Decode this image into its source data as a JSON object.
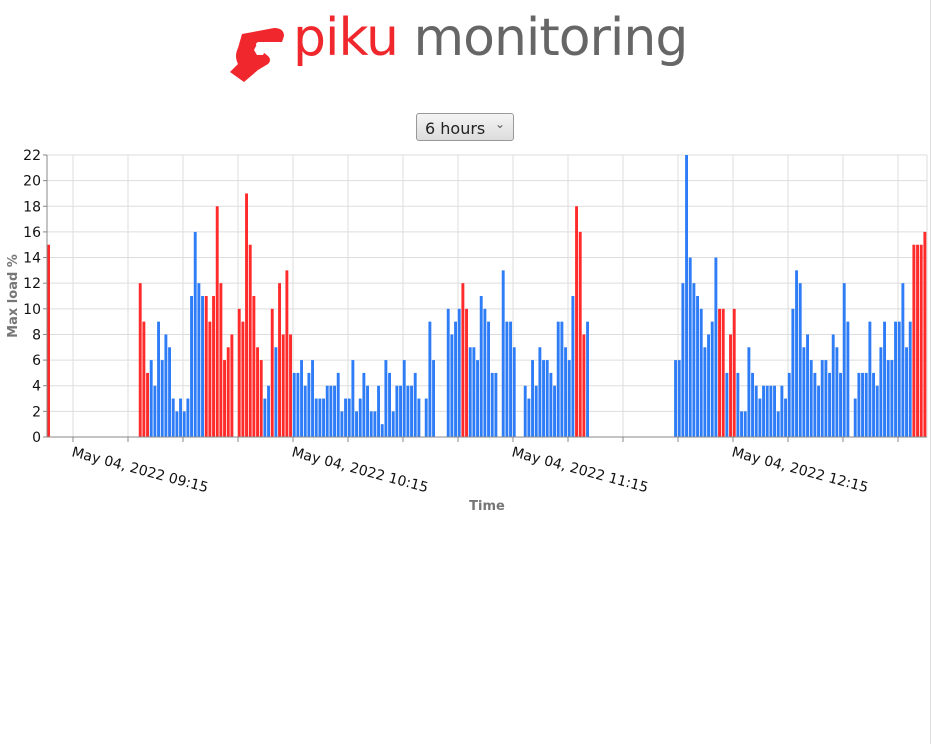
{
  "header": {
    "brand_primary": "piku",
    "brand_secondary": "monitoring",
    "logo_icon": "hand-icon",
    "brand_color": "#f0282d"
  },
  "controls": {
    "range_selected": "6 hours"
  },
  "chart_data": {
    "type": "bar",
    "xlabel": "Time",
    "ylabel": "Max load %",
    "ylim": [
      0,
      22
    ],
    "yticks": [
      "0",
      "2",
      "4",
      "6",
      "8",
      "10",
      "12",
      "14",
      "16",
      "18",
      "20",
      "22"
    ],
    "x_start": "May 04, 2022 09:08",
    "x_step_minutes": 1,
    "xtick_labels": [
      "May 04, 2022 09:15",
      "May 04, 2022 10:15",
      "May 04, 2022 11:15",
      "May 04, 2022 12:15"
    ],
    "grid": true,
    "colors": {
      "r": "#ff2a2a",
      "b": "#2f7df6"
    },
    "bars": [
      [
        15,
        "r"
      ],
      null,
      null,
      null,
      null,
      null,
      null,
      null,
      null,
      null,
      null,
      null,
      null,
      null,
      null,
      null,
      null,
      null,
      null,
      null,
      null,
      null,
      null,
      null,
      null,
      [
        12,
        "r"
      ],
      [
        9,
        "r"
      ],
      [
        5,
        "r"
      ],
      [
        6,
        "b"
      ],
      [
        4,
        "b"
      ],
      [
        9,
        "b"
      ],
      [
        6,
        "b"
      ],
      [
        8,
        "b"
      ],
      [
        7,
        "b"
      ],
      [
        3,
        "b"
      ],
      [
        2,
        "b"
      ],
      [
        3,
        "b"
      ],
      [
        2,
        "b"
      ],
      [
        3,
        "b"
      ],
      [
        11,
        "b"
      ],
      [
        16,
        "b"
      ],
      [
        12,
        "b"
      ],
      [
        11,
        "b"
      ],
      [
        11,
        "r"
      ],
      [
        9,
        "r"
      ],
      [
        11,
        "r"
      ],
      [
        18,
        "r"
      ],
      [
        12,
        "r"
      ],
      [
        6,
        "r"
      ],
      [
        7,
        "r"
      ],
      [
        8,
        "r"
      ],
      null,
      [
        10,
        "r"
      ],
      [
        9,
        "r"
      ],
      [
        19,
        "r"
      ],
      [
        15,
        "r"
      ],
      [
        11,
        "r"
      ],
      [
        7,
        "r"
      ],
      [
        6,
        "r"
      ],
      [
        3,
        "b"
      ],
      [
        4,
        "b"
      ],
      [
        10,
        "r"
      ],
      [
        7,
        "b"
      ],
      [
        12,
        "r"
      ],
      [
        8,
        "r"
      ],
      [
        13,
        "r"
      ],
      [
        8,
        "r"
      ],
      [
        5,
        "b"
      ],
      [
        5,
        "b"
      ],
      [
        6,
        "b"
      ],
      [
        4,
        "b"
      ],
      [
        5,
        "b"
      ],
      [
        6,
        "b"
      ],
      [
        3,
        "b"
      ],
      [
        3,
        "b"
      ],
      [
        3,
        "b"
      ],
      [
        4,
        "b"
      ],
      [
        4,
        "b"
      ],
      [
        4,
        "b"
      ],
      [
        5,
        "b"
      ],
      [
        2,
        "b"
      ],
      [
        3,
        "b"
      ],
      [
        3,
        "b"
      ],
      [
        6,
        "b"
      ],
      [
        2,
        "b"
      ],
      [
        3,
        "b"
      ],
      [
        5,
        "b"
      ],
      [
        4,
        "b"
      ],
      [
        2,
        "b"
      ],
      [
        2,
        "b"
      ],
      [
        4,
        "b"
      ],
      [
        1,
        "b"
      ],
      [
        6,
        "b"
      ],
      [
        5,
        "b"
      ],
      [
        2,
        "b"
      ],
      [
        4,
        "b"
      ],
      [
        4,
        "b"
      ],
      [
        6,
        "b"
      ],
      [
        4,
        "b"
      ],
      [
        4,
        "b"
      ],
      [
        5,
        "b"
      ],
      [
        3,
        "b"
      ],
      null,
      [
        3,
        "b"
      ],
      [
        9,
        "b"
      ],
      [
        6,
        "b"
      ],
      null,
      null,
      null,
      [
        10,
        "b"
      ],
      [
        8,
        "b"
      ],
      [
        9,
        "b"
      ],
      [
        10,
        "b"
      ],
      [
        12,
        "r"
      ],
      [
        10,
        "r"
      ],
      [
        7,
        "b"
      ],
      [
        7,
        "b"
      ],
      [
        6,
        "b"
      ],
      [
        11,
        "b"
      ],
      [
        10,
        "b"
      ],
      [
        9,
        "b"
      ],
      [
        5,
        "b"
      ],
      [
        5,
        "b"
      ],
      null,
      [
        13,
        "b"
      ],
      [
        9,
        "b"
      ],
      [
        9,
        "b"
      ],
      [
        7,
        "b"
      ],
      null,
      null,
      [
        4,
        "b"
      ],
      [
        3,
        "b"
      ],
      [
        6,
        "b"
      ],
      [
        4,
        "b"
      ],
      [
        7,
        "b"
      ],
      [
        6,
        "b"
      ],
      [
        6,
        "b"
      ],
      [
        5,
        "b"
      ],
      [
        4,
        "b"
      ],
      [
        9,
        "b"
      ],
      [
        9,
        "b"
      ],
      [
        7,
        "b"
      ],
      [
        6,
        "b"
      ],
      [
        11,
        "b"
      ],
      [
        18,
        "r"
      ],
      [
        16,
        "r"
      ],
      [
        8,
        "r"
      ],
      [
        9,
        "b"
      ],
      null,
      null,
      null,
      null,
      null,
      null,
      null,
      null,
      null,
      null,
      null,
      null,
      null,
      null,
      null,
      null,
      null,
      null,
      null,
      null,
      null,
      null,
      null,
      [
        6,
        "b"
      ],
      [
        6,
        "b"
      ],
      [
        12,
        "b"
      ],
      [
        22,
        "b"
      ],
      [
        14,
        "b"
      ],
      [
        12,
        "b"
      ],
      [
        11,
        "b"
      ],
      [
        10,
        "b"
      ],
      [
        7,
        "b"
      ],
      [
        8,
        "b"
      ],
      [
        9,
        "b"
      ],
      [
        14,
        "b"
      ],
      [
        10,
        "r"
      ],
      [
        10,
        "r"
      ],
      [
        5,
        "b"
      ],
      [
        8,
        "r"
      ],
      [
        10,
        "r"
      ],
      [
        5,
        "b"
      ],
      [
        2,
        "b"
      ],
      [
        2,
        "b"
      ],
      [
        7,
        "b"
      ],
      [
        5,
        "b"
      ],
      [
        4,
        "b"
      ],
      [
        3,
        "b"
      ],
      [
        4,
        "b"
      ],
      [
        4,
        "b"
      ],
      [
        4,
        "b"
      ],
      [
        4,
        "b"
      ],
      [
        2,
        "b"
      ],
      [
        4,
        "b"
      ],
      [
        3,
        "b"
      ],
      [
        5,
        "b"
      ],
      [
        10,
        "b"
      ],
      [
        13,
        "b"
      ],
      [
        12,
        "b"
      ],
      [
        7,
        "b"
      ],
      [
        8,
        "b"
      ],
      [
        6,
        "b"
      ],
      [
        5,
        "b"
      ],
      [
        4,
        "b"
      ],
      [
        6,
        "b"
      ],
      [
        6,
        "b"
      ],
      [
        5,
        "b"
      ],
      [
        8,
        "b"
      ],
      [
        7,
        "b"
      ],
      [
        5,
        "b"
      ],
      [
        12,
        "b"
      ],
      [
        9,
        "b"
      ],
      null,
      [
        3,
        "b"
      ],
      [
        5,
        "b"
      ],
      [
        5,
        "b"
      ],
      [
        5,
        "b"
      ],
      [
        9,
        "b"
      ],
      [
        5,
        "b"
      ],
      [
        4,
        "b"
      ],
      [
        7,
        "b"
      ],
      [
        9,
        "b"
      ],
      [
        6,
        "b"
      ],
      [
        6,
        "b"
      ],
      [
        9,
        "b"
      ],
      [
        9,
        "b"
      ],
      [
        12,
        "b"
      ],
      [
        7,
        "b"
      ],
      [
        9,
        "b"
      ],
      [
        15,
        "r"
      ],
      [
        15,
        "r"
      ],
      [
        15,
        "r"
      ],
      [
        16,
        "r"
      ]
    ]
  }
}
